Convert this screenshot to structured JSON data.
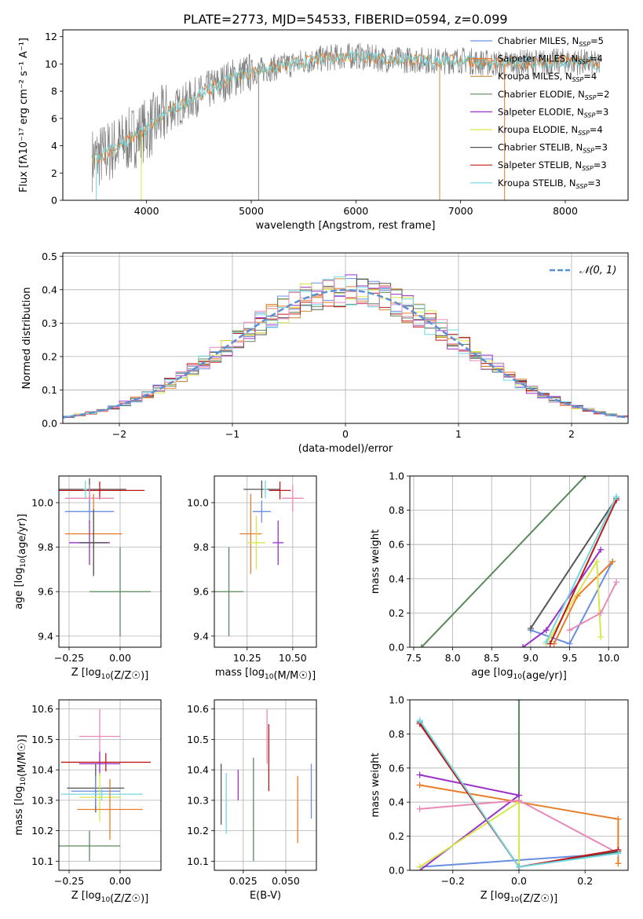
{
  "figure_title": "PLATE=2773, MJD=54533, FIBERID=0594, z=0.099",
  "colors": {
    "chabrier_miles": "#6a8fe0",
    "salpeter_miles": "#e87d2a",
    "kroupa_miles": "#c88a30",
    "chabrier_elodie": "#5a8a5a",
    "salpeter_elodie": "#9b30c8",
    "kroupa_elodie": "#d8e84a",
    "chabrier_stelib": "#555555",
    "salpeter_stelib": "#c01818",
    "kroupa_stelib": "#70d8e0",
    "data": "#7f7f7f",
    "pink": "#e88ab8",
    "normal": "#5a8fd8"
  },
  "chart_data": [
    {
      "id": "spectrum",
      "type": "line",
      "title": "PLATE=2773, MJD=54533, FIBERID=0594, z=0.099",
      "xlabel": "wavelength [Angstrom, rest frame]",
      "ylabel": "Flux [fλ10⁻¹⁷ erg cm⁻² s⁻¹ A⁻¹]",
      "xlim": [
        3200,
        8600
      ],
      "ylim": [
        0,
        12.5
      ],
      "xticks": [
        4000,
        5000,
        6000,
        7000,
        8000
      ],
      "yticks": [
        0,
        2,
        4,
        6,
        8,
        10,
        12
      ],
      "continuum": {
        "x": [
          3480,
          3600,
          3800,
          4000,
          4200,
          4400,
          4600,
          4800,
          5000,
          5200,
          5400,
          5600,
          5800,
          6000,
          6200,
          6400,
          6600,
          6800,
          7000,
          7200,
          7400,
          7600,
          7800,
          8000,
          8200,
          8330
        ],
        "y": [
          3.0,
          3.4,
          4.3,
          5.2,
          6.4,
          7.3,
          8.1,
          8.9,
          9.4,
          9.7,
          10.0,
          10.3,
          10.5,
          10.6,
          10.4,
          10.3,
          10.3,
          10.2,
          10.3,
          10.1,
          10.0,
          10.1,
          10.1,
          10.2,
          10.1,
          9.9
        ]
      },
      "legend": [
        {
          "name": "Chabrier MILES, N_SSP=5",
          "label": "Chabrier MILES, N",
          "sub": "SSP",
          "tail": "=5",
          "color": "#6a8fe0"
        },
        {
          "name": "Salpeter MILES, N_SSP=4",
          "label": "Salpeter MILES, N",
          "sub": "SSP",
          "tail": "=4",
          "color": "#e87d2a"
        },
        {
          "name": "Kroupa MILES, N_SSP=4",
          "label": "Kroupa MILES, N",
          "sub": "SSP",
          "tail": "=4",
          "color": "#c88a30"
        },
        {
          "name": "Chabrier ELODIE, N_SSP=2",
          "label": "Chabrier ELODIE, N",
          "sub": "SSP",
          "tail": "=2",
          "color": "#5a8a5a"
        },
        {
          "name": "Salpeter ELODIE, N_SSP=3",
          "label": "Salpeter ELODIE, N",
          "sub": "SSP",
          "tail": "=3",
          "color": "#9b30c8"
        },
        {
          "name": "Kroupa ELODIE, N_SSP=4",
          "label": "Kroupa ELODIE, N",
          "sub": "SSP",
          "tail": "=4",
          "color": "#d8e84a"
        },
        {
          "name": "Chabrier STELIB, N_SSP=3",
          "label": "Chabrier STELIB, N",
          "sub": "SSP",
          "tail": "=3",
          "color": "#555555"
        },
        {
          "name": "Salpeter STELIB, N_SSP=3",
          "label": "Salpeter STELIB, N",
          "sub": "SSP",
          "tail": "=3",
          "color": "#c01818"
        },
        {
          "name": "Kroupa STELIB, N_SSP=3",
          "label": "Kroupa STELIB, N",
          "sub": "SSP",
          "tail": "=3",
          "color": "#70d8e0"
        }
      ]
    },
    {
      "id": "residuals",
      "type": "bar",
      "xlabel": "(data-model)/error",
      "ylabel": "Normed distribution",
      "xlim": [
        -2.5,
        2.5
      ],
      "ylim": [
        0,
        0.51
      ],
      "xticks": [
        -2,
        -1,
        0,
        1,
        2
      ],
      "yticks": [
        0.0,
        0.1,
        0.2,
        0.3,
        0.4,
        0.5
      ],
      "grid": true,
      "normal_label": "𝒩(0, 1)",
      "bin_width": 0.1
    },
    {
      "id": "age_vs_Z",
      "type": "scatter",
      "xlabel": "Z [log10(Z/Z☉)]",
      "ylabel": "age  [log10(age/yr)]",
      "xlim": [
        -0.3,
        0.2
      ],
      "ylim": [
        9.35,
        10.12
      ],
      "xticks": [
        -0.25,
        0.0
      ],
      "yticks": [
        9.4,
        9.6,
        9.8,
        10.0
      ],
      "points": [
        {
          "x": -0.15,
          "y": 10.06,
          "xerr": 0.18,
          "yerr": 0.05,
          "color": "#555555"
        },
        {
          "x": -0.1,
          "y": 10.055,
          "xerr": 0.22,
          "yerr": 0.04,
          "color": "#c01818"
        },
        {
          "x": -0.15,
          "y": 10.02,
          "xerr": 0.12,
          "yerr": 0.06,
          "color": "#e88ab8"
        },
        {
          "x": -0.15,
          "y": 9.96,
          "xerr": 0.12,
          "yerr": 0.05,
          "color": "#6a8fe0"
        },
        {
          "x": -0.13,
          "y": 9.86,
          "xerr": 0.14,
          "yerr": 0.18,
          "color": "#e87d2a"
        },
        {
          "x": -0.15,
          "y": 9.82,
          "xerr": 0.1,
          "yerr": 0.1,
          "color": "#9b30c8"
        },
        {
          "x": -0.13,
          "y": 9.82,
          "xerr": 0.07,
          "yerr": 0.15,
          "color": "#555555"
        },
        {
          "x": 0.0,
          "y": 9.6,
          "xerr": 0.15,
          "yerr": 0.2,
          "color": "#5a8a5a"
        },
        {
          "x": -0.17,
          "y": 10.06,
          "xerr": 0.01,
          "yerr": 0.04,
          "color": "#70d8e0"
        }
      ]
    },
    {
      "id": "age_vs_mass",
      "type": "scatter",
      "xlabel": "mass [log10(M/M☉)]",
      "ylabel": "",
      "xlim": [
        10.07,
        10.63
      ],
      "ylim": [
        9.35,
        10.12
      ],
      "xticks": [
        10.25,
        10.5
      ],
      "yticks": [
        9.4,
        9.6,
        9.8,
        10.0
      ],
      "points": [
        {
          "x": 10.33,
          "y": 10.06,
          "xerr": 0.1,
          "yerr": 0.04,
          "color": "#555555"
        },
        {
          "x": 10.43,
          "y": 10.055,
          "xerr": 0.06,
          "yerr": 0.04,
          "color": "#c01818"
        },
        {
          "x": 10.5,
          "y": 10.02,
          "xerr": 0.06,
          "yerr": 0.06,
          "color": "#e88ab8"
        },
        {
          "x": 10.33,
          "y": 9.96,
          "xerr": 0.05,
          "yerr": 0.05,
          "color": "#6a8fe0"
        },
        {
          "x": 10.27,
          "y": 9.86,
          "xerr": 0.06,
          "yerr": 0.18,
          "color": "#e87d2a"
        },
        {
          "x": 10.42,
          "y": 9.82,
          "xerr": 0.03,
          "yerr": 0.1,
          "color": "#9b30c8"
        },
        {
          "x": 10.3,
          "y": 9.82,
          "xerr": 0.05,
          "yerr": 0.12,
          "color": "#d8e84a"
        },
        {
          "x": 10.15,
          "y": 9.6,
          "xerr": 0.08,
          "yerr": 0.2,
          "color": "#5a8a5a"
        },
        {
          "x": 10.35,
          "y": 10.06,
          "xerr": 0.01,
          "yerr": 0.04,
          "color": "#70d8e0"
        }
      ]
    },
    {
      "id": "weight_vs_age",
      "type": "line",
      "xlabel": "age  [log10(age/yr)]",
      "ylabel": "mass weight",
      "xlim": [
        7.45,
        10.25
      ],
      "ylim": [
        0,
        1.0
      ],
      "xticks": [
        7.5,
        8.0,
        8.5,
        9.0,
        9.5,
        10.0
      ],
      "yticks": [
        0.0,
        0.2,
        0.4,
        0.6,
        0.8,
        1.0
      ],
      "series": [
        {
          "color": "#5a8a5a",
          "x": [
            7.6,
            9.7
          ],
          "y": [
            0.0,
            1.0
          ]
        },
        {
          "color": "#6a8fe0",
          "x": [
            9.0,
            9.5,
            10.05
          ],
          "y": [
            0.1,
            0.02,
            0.5
          ]
        },
        {
          "color": "#e87d2a",
          "x": [
            9.3,
            9.6,
            10.05
          ],
          "y": [
            0.02,
            0.3,
            0.5
          ]
        },
        {
          "color": "#9b30c8",
          "x": [
            8.9,
            9.2,
            9.9
          ],
          "y": [
            0.0,
            0.1,
            0.57
          ]
        },
        {
          "color": "#d8e84a",
          "x": [
            9.2,
            9.85,
            9.9
          ],
          "y": [
            0.02,
            0.5,
            0.06
          ]
        },
        {
          "color": "#e88ab8",
          "x": [
            9.5,
            9.9,
            10.1
          ],
          "y": [
            0.1,
            0.2,
            0.38
          ]
        },
        {
          "color": "#555555",
          "x": [
            9.0,
            10.1
          ],
          "y": [
            0.11,
            0.87
          ]
        },
        {
          "color": "#c01818",
          "x": [
            9.25,
            10.1
          ],
          "y": [
            0.02,
            0.86
          ]
        },
        {
          "color": "#70d8e0",
          "x": [
            9.2,
            10.1
          ],
          "y": [
            0.03,
            0.88
          ]
        }
      ]
    },
    {
      "id": "mass_vs_Z",
      "type": "scatter",
      "xlabel": "Z [log10(Z/Z☉)]",
      "ylabel": "mass [log10(M/M☉)]",
      "xlim": [
        -0.3,
        0.2
      ],
      "ylim": [
        10.07,
        10.63
      ],
      "xticks": [
        -0.25,
        0.0
      ],
      "yticks": [
        10.1,
        10.2,
        10.3,
        10.4,
        10.5,
        10.6
      ],
      "points": [
        {
          "x": -0.1,
          "y": 10.51,
          "xerr": 0.1,
          "yerr": 0.09,
          "color": "#e88ab8"
        },
        {
          "x": -0.07,
          "y": 10.425,
          "xerr": 0.22,
          "yerr": 0.03,
          "color": "#c01818"
        },
        {
          "x": -0.1,
          "y": 10.42,
          "xerr": 0.1,
          "yerr": 0.04,
          "color": "#9b30c8"
        },
        {
          "x": -0.12,
          "y": 10.34,
          "xerr": 0.14,
          "yerr": 0.08,
          "color": "#555555"
        },
        {
          "x": -0.12,
          "y": 10.33,
          "xerr": 0.12,
          "yerr": 0.05,
          "color": "#6a8fe0"
        },
        {
          "x": -0.09,
          "y": 10.32,
          "xerr": 0.2,
          "yerr": 0.02,
          "color": "#70d8e0"
        },
        {
          "x": -0.1,
          "y": 10.31,
          "xerr": 0.1,
          "yerr": 0.08,
          "color": "#d8e84a"
        },
        {
          "x": -0.05,
          "y": 10.27,
          "xerr": 0.16,
          "yerr": 0.1,
          "color": "#e87d2a"
        },
        {
          "x": -0.15,
          "y": 10.15,
          "xerr": 0.15,
          "yerr": 0.05,
          "color": "#5a8a5a"
        }
      ]
    },
    {
      "id": "mass_vs_ebv",
      "type": "scatter",
      "xlabel": "E(B-V)",
      "ylabel": "",
      "xlim": [
        0.008,
        0.068
      ],
      "ylim": [
        10.07,
        10.63
      ],
      "xticks": [
        0.025,
        0.05
      ],
      "yticks": [
        10.1,
        10.2,
        10.3,
        10.4,
        10.5,
        10.6
      ],
      "points": [
        {
          "x": 0.012,
          "y": 10.32,
          "yerr": 0.1,
          "color": "#555555"
        },
        {
          "x": 0.015,
          "y": 10.29,
          "yerr": 0.1,
          "color": "#70d8e0"
        },
        {
          "x": 0.022,
          "y": 10.35,
          "yerr": 0.05,
          "color": "#9b30c8"
        },
        {
          "x": 0.031,
          "y": 10.27,
          "yerr": 0.17,
          "color": "#5a8a5a"
        },
        {
          "x": 0.039,
          "y": 10.51,
          "yerr": 0.09,
          "color": "#e88ab8"
        },
        {
          "x": 0.04,
          "y": 10.44,
          "yerr": 0.11,
          "color": "#c01818"
        },
        {
          "x": 0.057,
          "y": 10.27,
          "yerr": 0.11,
          "color": "#e87d2a"
        },
        {
          "x": 0.065,
          "y": 10.33,
          "yerr": 0.09,
          "color": "#6a8fe0"
        }
      ]
    },
    {
      "id": "weight_vs_Z",
      "type": "line",
      "xlabel": "Z [log10(Z/Z☉)]",
      "ylabel": "mass weight",
      "xlim": [
        -0.33,
        0.33
      ],
      "ylim": [
        0,
        1.0
      ],
      "xticks": [
        -0.2,
        0.0,
        0.2
      ],
      "yticks": [
        0.0,
        0.2,
        0.4,
        0.6,
        0.8,
        1.0
      ],
      "series": [
        {
          "color": "#5a8a5a",
          "x": [
            0.0,
            0.0
          ],
          "y": [
            0.0,
            1.0
          ]
        },
        {
          "color": "#6a8fe0",
          "x": [
            -0.3,
            0.0,
            0.3
          ],
          "y": [
            0.02,
            0.06,
            0.1
          ]
        },
        {
          "color": "#e87d2a",
          "x": [
            -0.3,
            0.0,
            0.3,
            0.3
          ],
          "y": [
            0.5,
            0.4,
            0.3,
            0.04
          ]
        },
        {
          "color": "#9b30c8",
          "x": [
            -0.3,
            0.0,
            -0.3
          ],
          "y": [
            0.0,
            0.44,
            0.56
          ]
        },
        {
          "color": "#d8e84a",
          "x": [
            -0.3,
            0.0,
            0.0
          ],
          "y": [
            0.02,
            0.4,
            0.02
          ]
        },
        {
          "color": "#e88ab8",
          "x": [
            -0.3,
            0.0,
            0.3
          ],
          "y": [
            0.36,
            0.41,
            0.1
          ]
        },
        {
          "color": "#555555",
          "x": [
            -0.3,
            0.0,
            0.3
          ],
          "y": [
            0.87,
            0.02,
            0.11
          ]
        },
        {
          "color": "#c01818",
          "x": [
            -0.3,
            0.0,
            0.3
          ],
          "y": [
            0.86,
            0.02,
            0.12
          ]
        },
        {
          "color": "#70d8e0",
          "x": [
            -0.3,
            0.0,
            0.3
          ],
          "y": [
            0.88,
            0.02,
            0.1
          ]
        }
      ]
    }
  ]
}
